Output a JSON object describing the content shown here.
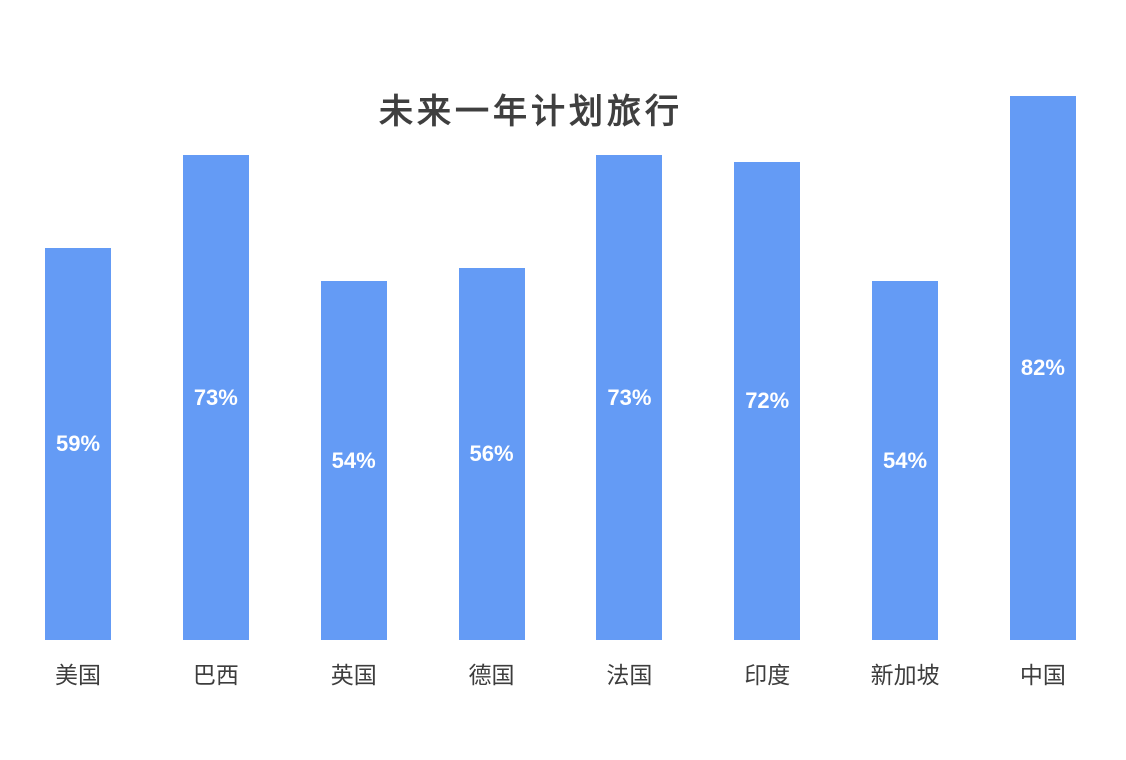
{
  "chart_data": {
    "type": "bar",
    "title": "未来一年计划旅行",
    "categories": [
      "美国",
      "巴西",
      "英国",
      "德国",
      "法国",
      "印度",
      "新加坡",
      "中国"
    ],
    "values": [
      59,
      73,
      54,
      56,
      73,
      72,
      54,
      82
    ],
    "value_labels": [
      "59%",
      "73%",
      "54%",
      "56%",
      "73%",
      "72%",
      "54%",
      "82%"
    ],
    "unit": "%",
    "xlabel": "",
    "ylabel": "",
    "ylim": [
      0,
      100
    ],
    "grid": false,
    "axes_visible": false,
    "legend": "none",
    "bar_color": "#649BF5",
    "value_label_color": "#ffffff",
    "title_color": "#3f3f3f",
    "category_label_color": "#3d3d3d",
    "background": "#ffffff"
  }
}
